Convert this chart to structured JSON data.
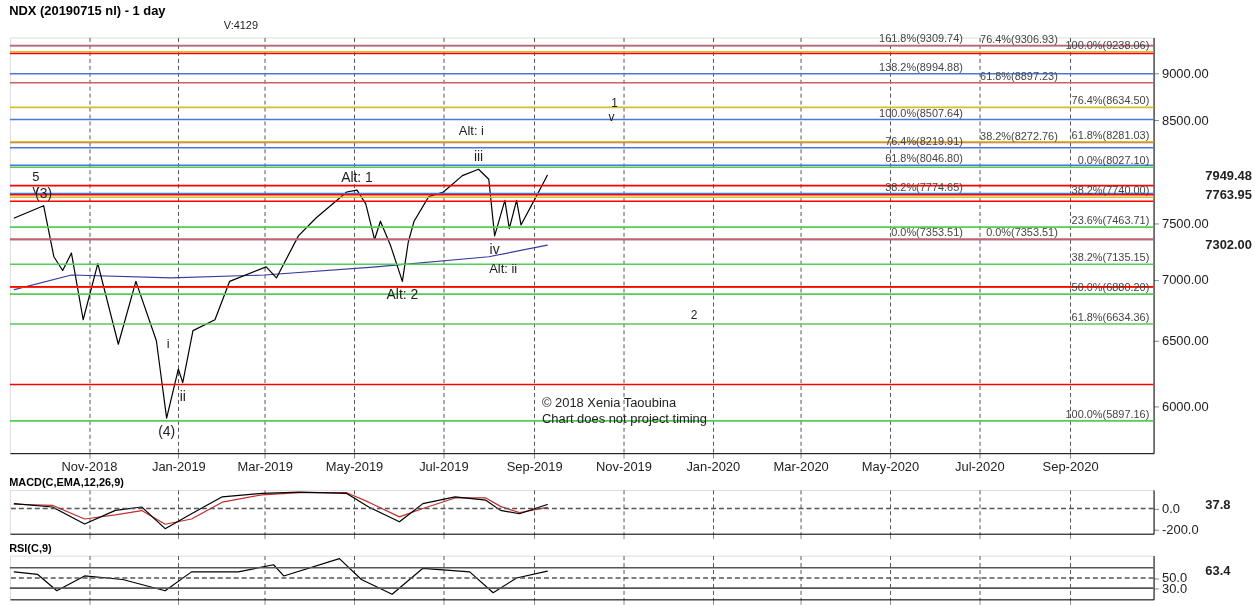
{
  "chart_data": [
    {
      "type": "line",
      "title": "NDX (20190715 nl) - 1 day",
      "log": true,
      "grid": "x",
      "xlim": [
        "2018-09-08",
        "2020-10-28"
      ],
      "xticks": [
        {
          "value": "2018-11-01",
          "label": "Nov-2018"
        },
        {
          "value": "2019-01-01",
          "label": "Jan-2019"
        },
        {
          "value": "2019-03-01",
          "label": "Mar-2019"
        },
        {
          "value": "2019-05-01",
          "label": "May-2019"
        },
        {
          "value": "2019-07-01",
          "label": "Jul-2019"
        },
        {
          "value": "2019-09-01",
          "label": "Sep-2019"
        },
        {
          "value": "2019-11-01",
          "label": "Nov-2019"
        },
        {
          "value": "2020-01-01",
          "label": "Jan-2020"
        },
        {
          "value": "2020-03-01",
          "label": "Mar-2020"
        },
        {
          "value": "2020-05-01",
          "label": "May-2020"
        },
        {
          "value": "2020-07-01",
          "label": "Jul-2020"
        },
        {
          "value": "2020-09-01",
          "label": "Sep-2020"
        }
      ],
      "ylim": [
        5670,
        9400
      ],
      "yticks": [
        {
          "value": 6000,
          "label": "6000.00"
        },
        {
          "value": 6500,
          "label": "6500.00"
        },
        {
          "value": 7000,
          "label": "7000.00"
        },
        {
          "value": 7500,
          "label": "7500.00"
        },
        {
          "value": 8500,
          "label": "8500.00"
        },
        {
          "value": 9000,
          "label": "9000.00"
        }
      ],
      "series": [
        {
          "color": "#000000",
          "x": [
            "2018-09-11",
            "2018-10-01",
            "2018-10-08",
            "2018-10-14",
            "2018-10-20",
            "2018-10-28",
            "2018-11-07",
            "2018-11-21",
            "2018-12-03",
            "2018-12-17",
            "2018-12-24",
            "2019-01-01",
            "2019-01-04",
            "2019-01-11",
            "2019-01-26",
            "2019-02-05",
            "2019-03-02",
            "2019-03-09",
            "2019-03-24",
            "2019-04-05",
            "2019-04-26",
            "2019-05-03",
            "2019-05-09",
            "2019-05-15",
            "2019-05-19",
            "2019-05-26",
            "2019-06-03",
            "2019-06-07",
            "2019-06-11",
            "2019-06-21",
            "2019-07-01",
            "2019-07-14",
            "2019-07-25",
            "2019-08-01",
            "2019-08-05",
            "2019-08-12",
            "2019-08-15",
            "2019-08-20",
            "2019-08-23",
            "2019-09-01",
            "2019-09-06",
            "2019-09-10"
          ],
          "values": [
            7547,
            7661,
            7200,
            7080,
            7232,
            6669,
            7140,
            6473,
            6987,
            6501,
            5917,
            6281,
            6178,
            6581,
            6669,
            6987,
            7112,
            7017,
            7385,
            7547,
            7790,
            7807,
            7678,
            7353,
            7518,
            7296,
            6987,
            7328,
            7518,
            7746,
            7790,
            7946,
            8008,
            7911,
            7385,
            7711,
            7451,
            7711,
            7484,
            7711,
            7842,
            7949.48
          ]
        },
        {
          "color": "#3a3aa0",
          "x": [
            "2018-09-11",
            "2018-10-20",
            "2018-12-27",
            "2019-03-01",
            "2019-05-16",
            "2019-08-01",
            "2019-09-10"
          ],
          "values": [
            6918,
            7042,
            7017,
            7042,
            7111,
            7200,
            7302
          ]
        }
      ],
      "ref_lines": [
        {
          "axis": "y",
          "value": 9309.74,
          "label": "161.8%(9309.74)",
          "color": "#4a78d8"
        },
        {
          "axis": "y",
          "value": 8994.88,
          "label": "138.2%(8994.88)",
          "color": "#4a78d8"
        },
        {
          "axis": "y",
          "value": 8507.64,
          "label": "100.0%(8507.64)",
          "color": "#4a78d8"
        },
        {
          "axis": "y",
          "value": 8219.91,
          "label": "76.4%(8219.91)",
          "color": "#4a78d8"
        },
        {
          "axis": "y",
          "value": 8046.8,
          "label": "61.8%(8046.80)",
          "color": "#4a78d8"
        },
        {
          "axis": "y",
          "value": 7774.65,
          "label": "38.2%(7774.65)",
          "color": "#4a78d8"
        },
        {
          "axis": "y",
          "value": 7353.51,
          "label": "0.0%(7353.51)",
          "color": "#4a78d8"
        },
        {
          "axis": "y",
          "value": 9306.93,
          "label": "76.4%(9306.93)",
          "color": "#d06060"
        },
        {
          "axis": "y",
          "value": 8897.23,
          "label": "61.8%(8897.23)",
          "color": "#d06060"
        },
        {
          "axis": "y",
          "value": 8272.76,
          "label": "38.2%(8272.76)",
          "color": "#d06060"
        },
        {
          "axis": "y",
          "value": 7353.51,
          "label": "0.0%(7353.51)",
          "color": "#d06060"
        },
        {
          "axis": "y",
          "value": 9238.06,
          "label": "100.0%(9238.06)",
          "color": "#d4c02a"
        },
        {
          "axis": "y",
          "value": 8634.5,
          "label": "76.4%(8634.50)",
          "color": "#d4c02a"
        },
        {
          "axis": "y",
          "value": 8281.03,
          "label": "61.8%(8281.03)",
          "color": "#d4c02a"
        },
        {
          "axis": "y",
          "value": 7740.0,
          "label": "38.2%(7740.00)",
          "color": "#d4c02a"
        },
        {
          "axis": "y",
          "value": 6938,
          "label": null,
          "color": "#d4c02a"
        },
        {
          "axis": "y",
          "value": 8027.1,
          "label": "0.0%(8027.10)",
          "color": "#55cc55"
        },
        {
          "axis": "y",
          "value": 7463.71,
          "label": "23.6%(7463.71)",
          "color": "#55cc55"
        },
        {
          "axis": "y",
          "value": 7135.15,
          "label": "38.2%(7135.15)",
          "color": "#55cc55"
        },
        {
          "axis": "y",
          "value": 6880.2,
          "label": "50.0%(6880.20)",
          "color": "#55cc55"
        },
        {
          "axis": "y",
          "value": 6634.36,
          "label": "61.8%(6634.36)",
          "color": "#55cc55"
        },
        {
          "axis": "y",
          "value": 5897.16,
          "label": "100.0%(5897.16)",
          "color": "#55cc55"
        },
        {
          "axis": "y",
          "value": 9219,
          "label": null,
          "color": "#ff0000"
        },
        {
          "axis": "y",
          "value": 7850,
          "label": null,
          "color": "#ff0000"
        },
        {
          "axis": "y",
          "value": 7763.95,
          "label": null,
          "color": "#ff0000"
        },
        {
          "axis": "y",
          "value": 7703,
          "label": null,
          "color": "#ff0000"
        },
        {
          "axis": "y",
          "value": 6941,
          "label": null,
          "color": "#ff0000"
        },
        {
          "axis": "y",
          "value": 6164,
          "label": null,
          "color": "#ff0000"
        }
      ],
      "annotations": [
        "V:4129",
        "© 2018 Xenia Taoubina",
        "Chart does not project timing",
        "1",
        "v",
        "2",
        "5",
        "v",
        "i",
        "Alt: i",
        "Alt: ii",
        "7949.48",
        "7763.95",
        "7302.00",
        {
          "text": "(3)",
          "x": "2018-10-01",
          "y": 7661
        },
        {
          "text": "(4)",
          "x": "2018-12-24",
          "y": 5917
        },
        {
          "text": "ii",
          "x": "2019-01-04",
          "y": 6178
        },
        {
          "text": "Alt: 1",
          "x": "2019-05-03",
          "y": 7807
        },
        {
          "text": "Alt: 2",
          "x": "2019-06-03",
          "y": 6987
        },
        {
          "text": "iii",
          "x": "2019-07-25",
          "y": 8008
        },
        {
          "text": "iv",
          "x": "2019-08-05",
          "y": 7385
        }
      ]
    },
    {
      "type": "line",
      "title": "MACD(C,EMA,12,26,9)",
      "grid": "x",
      "tick_labels": "y",
      "xlim": [
        "2018-09-08",
        "2020-10-28"
      ],
      "ylim": [
        -240,
        176
      ],
      "yticks": [
        {
          "value": -200,
          "label": "-200.0"
        },
        {
          "value": 0,
          "label": "0.0"
        }
      ],
      "x": [
        "2018-09-11",
        "2018-10-07",
        "2018-10-29",
        "2018-11-19",
        "2018-12-07",
        "2018-12-23",
        "2019-01-10",
        "2019-01-31",
        "2019-02-27",
        "2019-03-25",
        "2019-04-26",
        "2019-05-11",
        "2019-06-01",
        "2019-06-17",
        "2019-07-09",
        "2019-07-30",
        "2019-08-09",
        "2019-08-22",
        "2019-09-10"
      ],
      "series": [
        {
          "color": "#000000",
          "values": [
            46,
            14,
            -147,
            -18,
            14,
            -192,
            -50,
            111,
            143,
            156,
            143,
            14,
            -127,
            46,
            111,
            79,
            -18,
            -50,
            37.8
          ]
        },
        {
          "color": "#c03030",
          "values": [
            40,
            30,
            -100,
            -60,
            -20,
            -150,
            -100,
            60,
            130,
            150,
            150,
            60,
            -80,
            0,
            100,
            100,
            20,
            -40,
            10
          ]
        }
      ],
      "ref_lines": [
        {
          "axis": "y",
          "value": 0,
          "line_style": "dashed",
          "color": "#555555"
        }
      ],
      "annotations": [
        "37.8"
      ]
    },
    {
      "type": "line",
      "title": "RSI(C,9)",
      "grid": "x",
      "tick_labels": "y",
      "xlim": [
        "2018-09-08",
        "2020-10-28"
      ],
      "ylim": [
        8,
        94
      ],
      "yticks": [
        {
          "value": 30,
          "label": "30.0"
        },
        {
          "value": 50,
          "label": "50.0"
        }
      ],
      "x": [
        "2018-09-11",
        "2018-09-27",
        "2018-10-10",
        "2018-10-29",
        "2018-11-24",
        "2018-12-23",
        "2019-01-10",
        "2019-02-11",
        "2019-03-07",
        "2019-03-14",
        "2019-04-21",
        "2019-05-06",
        "2019-05-27",
        "2019-06-17",
        "2019-07-19",
        "2019-08-04",
        "2019-08-20",
        "2019-09-10"
      ],
      "series": [
        {
          "color": "#000000",
          "values": [
            62,
            57,
            25,
            54,
            47,
            25,
            62,
            62,
            76,
            54,
            88,
            47,
            18,
            69,
            62,
            21,
            50,
            63.4
          ]
        }
      ],
      "ref_lines": [
        {
          "axis": "y",
          "value": 70,
          "color": "#555555"
        },
        {
          "axis": "y",
          "value": 50,
          "line_style": "dashed",
          "color": "#555555"
        },
        {
          "axis": "y",
          "value": 30,
          "color": "#555555"
        }
      ],
      "annotations": [
        "63.4"
      ]
    }
  ]
}
